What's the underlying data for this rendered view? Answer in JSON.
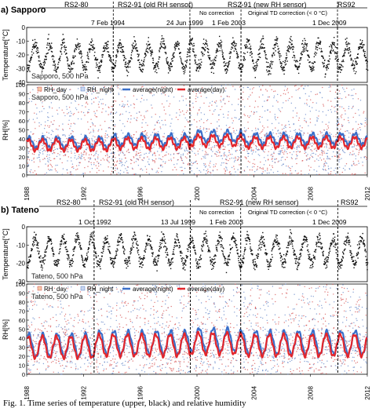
{
  "figure": {
    "caption": "Fig. 1. Time series of temperature (upper, black) and relative humidity"
  },
  "colors": {
    "temp": "#111111",
    "rh_day": "#d44a4a",
    "rh_night": "#5b7fc4",
    "avg_night": "#3b6fc9",
    "avg_day": "#e3262c",
    "legend_day_box": "#f3c9a8",
    "legend_night_box": "#c9d7f0"
  },
  "chart_data": [
    {
      "type": "scatter",
      "panel_label": "a) Sapporo",
      "sonde_periods": [
        "RS2-80",
        "RS2-91 (old RH sensor)",
        "RS2-91 (new RH sensor)",
        "RS92"
      ],
      "sub_periods": [
        "No correction",
        "Original TD correction (< 0 °C)"
      ],
      "change_dates": [
        "7 Feb 1994",
        "24 Jun 1999",
        "1 Feb 2003",
        "1 Dec 2009"
      ],
      "change_years": [
        1994.1,
        1999.5,
        2003.1,
        2009.9
      ],
      "temperature": {
        "station_label": "Sapporo, 500 hPa",
        "ylabel": "Temperature[°C]",
        "ylim": [
          -40,
          0
        ],
        "yticks": [
          "0",
          "-10",
          "-20",
          "-30",
          "-40"
        ],
        "seasonal_cycle": {
          "mean": -20.5,
          "amplitude": 9,
          "scatter": 3.5
        }
      },
      "rh": {
        "station_label": "Sapporo, 500 hPa",
        "ylabel": "RH[%]",
        "ylim": [
          0,
          100
        ],
        "yticks": [
          "100",
          "90",
          "80",
          "70",
          "60",
          "50",
          "40",
          "30",
          "20",
          "10",
          "0"
        ],
        "legend": [
          "RH_day",
          "RH_night",
          "average(night)",
          "average(day)"
        ],
        "average_day": {
          "base": 33,
          "amplitude": 6,
          "period_offsets": [
            0,
            2,
            5,
            3
          ]
        },
        "average_night": {
          "base": 36,
          "amplitude": 6,
          "period_offsets": [
            0,
            3,
            7,
            4
          ]
        }
      },
      "xlim": [
        1988,
        2012
      ],
      "xticks": [
        "1988",
        "1992",
        "1996",
        "2000",
        "2004",
        "2008",
        "2012"
      ]
    },
    {
      "type": "scatter",
      "panel_label": "b) Tateno",
      "sonde_periods": [
        "RS2-80",
        "RS2-91 (old RH sensor)",
        "RS2-91 (new RH sensor)",
        "RS92"
      ],
      "sub_periods": [
        "No correction",
        "Original TD correction (< 0 °C)"
      ],
      "change_dates": [
        "1 Oct 1992",
        "13 Jul 1999",
        "1 Feb 2003",
        "1 Dec 2009"
      ],
      "change_years": [
        1992.75,
        1999.53,
        2003.08,
        2009.92
      ],
      "temperature": {
        "station_label": "Tateno, 500 hPa",
        "ylabel": "Temperature[°C]",
        "ylim": [
          -30,
          0
        ],
        "yticks": [
          "0",
          "-10",
          "-20",
          "-30"
        ],
        "seasonal_cycle": {
          "mean": -13,
          "amplitude": 7,
          "scatter": 2.5
        }
      },
      "rh": {
        "station_label": "Tateno, 500 hPa",
        "ylabel": "RH[%]",
        "ylim": [
          0,
          100
        ],
        "yticks": [
          "100",
          "90",
          "80",
          "70",
          "60",
          "50",
          "40",
          "30",
          "20",
          "10",
          "0"
        ],
        "legend": [
          "RH_day",
          "RH_night",
          "average(night)",
          "average(day)"
        ],
        "average_day": {
          "base": 30,
          "amplitude": 12,
          "period_offsets": [
            0,
            2,
            4,
            2
          ]
        },
        "average_night": {
          "base": 32,
          "amplitude": 13,
          "period_offsets": [
            0,
            3,
            6,
            3
          ]
        }
      },
      "xlim": [
        1988,
        2012
      ],
      "xticks": [
        "1988",
        "1992",
        "1996",
        "2000",
        "2004",
        "2008",
        "2012"
      ]
    }
  ]
}
